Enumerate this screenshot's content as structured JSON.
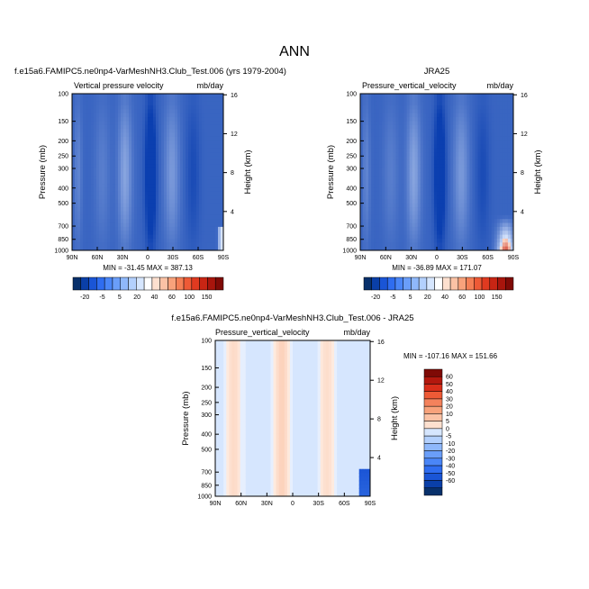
{
  "figure_title": "ANN",
  "chart_data": [
    {
      "type": "heatmap",
      "title": "f.e15a6.FAMIPC5.ne0np4-VarMeshNH3.Club_Test.006 (yrs 1979-2004)",
      "subtitle_left": "Vertical pressure velocity",
      "subtitle_right": "mb/day",
      "xlabel": "",
      "ylabel": "Pressure (mb)",
      "ylabel_right": "Height (km)",
      "x_ticks": [
        "90N",
        "60N",
        "30N",
        "0",
        "30S",
        "60S",
        "90S"
      ],
      "y_ticks": [
        "100",
        "150",
        "200",
        "250",
        "300",
        "400",
        "500",
        "700",
        "850",
        "1000"
      ],
      "y_ticks_right": [
        "16",
        "12",
        "8",
        "4"
      ],
      "ylim": [
        1000,
        100
      ],
      "y_scale": "log",
      "stats": "MIN = -31.45   MAX = 387.13",
      "colorbar": {
        "orientation": "horizontal",
        "labels": [
          "-20",
          "-5",
          "5",
          "20",
          "40",
          "60",
          "100",
          "150"
        ],
        "colors": [
          "#08306b",
          "#0a3fa8",
          "#1a55d6",
          "#2f6df0",
          "#4a86f7",
          "#6a9ef9",
          "#8fb8fb",
          "#b3d0fd",
          "#d6e6fe",
          "#ffffff",
          "#fde0cf",
          "#fbc2a5",
          "#f8a27b",
          "#f47f55",
          "#ee5a36",
          "#e03a20",
          "#c82514",
          "#a8150c",
          "#7f0a06"
        ]
      }
    },
    {
      "type": "heatmap",
      "title": "JRA25",
      "subtitle_left": "Pressure_vertical_velocity",
      "subtitle_right": "mb/day",
      "xlabel": "",
      "ylabel": "Pressure (mb)",
      "ylabel_right": "Height (km)",
      "x_ticks": [
        "90N",
        "60N",
        "30N",
        "0",
        "30S",
        "60S",
        "90S"
      ],
      "y_ticks": [
        "100",
        "150",
        "200",
        "250",
        "300",
        "400",
        "500",
        "700",
        "850",
        "1000"
      ],
      "y_ticks_right": [
        "16",
        "12",
        "8",
        "4"
      ],
      "ylim": [
        1000,
        100
      ],
      "y_scale": "log",
      "stats": "MIN = -36.89   MAX = 171.07",
      "colorbar": {
        "orientation": "horizontal",
        "labels": [
          "-20",
          "-5",
          "5",
          "20",
          "40",
          "60",
          "100",
          "150"
        ],
        "colors": [
          "#08306b",
          "#0a3fa8",
          "#1a55d6",
          "#2f6df0",
          "#4a86f7",
          "#6a9ef9",
          "#8fb8fb",
          "#b3d0fd",
          "#d6e6fe",
          "#ffffff",
          "#fde0cf",
          "#fbc2a5",
          "#f8a27b",
          "#f47f55",
          "#ee5a36",
          "#e03a20",
          "#c82514",
          "#a8150c",
          "#7f0a06"
        ]
      }
    },
    {
      "type": "heatmap",
      "title": "f.e15a6.FAMIPC5.ne0np4-VarMeshNH3.Club_Test.006 - JRA25",
      "subtitle_left": "Pressure_vertical_velocity",
      "subtitle_right": "mb/day",
      "xlabel": "",
      "ylabel": "Pressure (mb)",
      "ylabel_right": "Height (km)",
      "x_ticks": [
        "90N",
        "60N",
        "30N",
        "0",
        "30S",
        "60S",
        "90S"
      ],
      "y_ticks": [
        "100",
        "150",
        "200",
        "250",
        "300",
        "400",
        "500",
        "700",
        "850",
        "1000"
      ],
      "y_ticks_right": [
        "16",
        "12",
        "8",
        "4"
      ],
      "ylim": [
        1000,
        100
      ],
      "y_scale": "log",
      "stats": "MIN = -107.16   MAX = 151.66",
      "colorbar": {
        "orientation": "vertical",
        "labels": [
          "60",
          "50",
          "40",
          "30",
          "20",
          "10",
          "5",
          "0",
          "-5",
          "-10",
          "-20",
          "-30",
          "-40",
          "-50",
          "-60"
        ],
        "colors": [
          "#7f0a06",
          "#b3180e",
          "#d92e1a",
          "#ee5a36",
          "#f4825c",
          "#f8a27b",
          "#fbc2a5",
          "#fde0cf",
          "#d6e6fe",
          "#b3d0fd",
          "#8fb8fb",
          "#6a9ef9",
          "#4a86f7",
          "#2f6df0",
          "#1a55d6",
          "#0a3fa8",
          "#08306b"
        ]
      }
    }
  ]
}
